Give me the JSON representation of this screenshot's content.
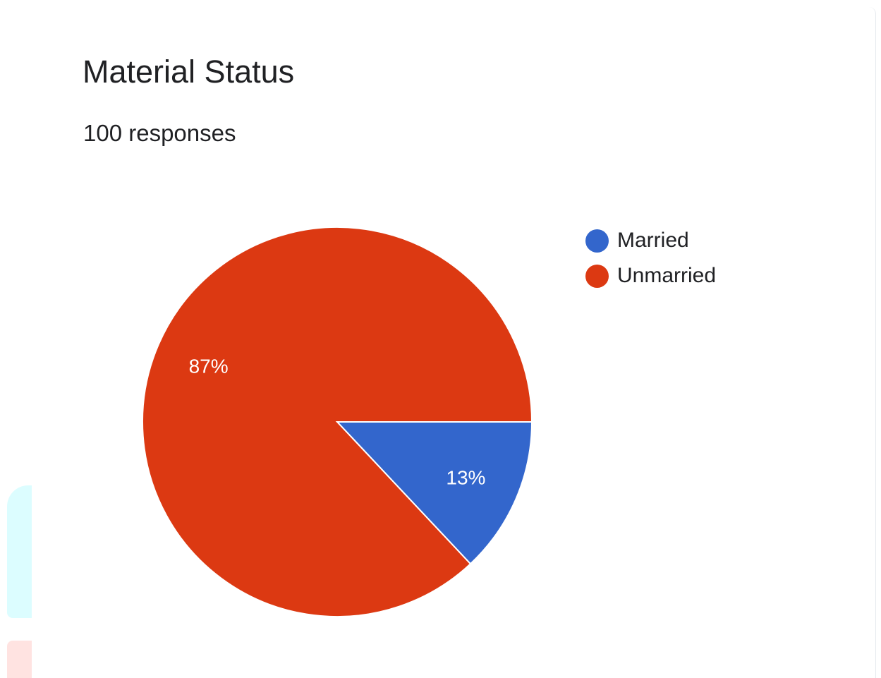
{
  "header": {
    "title": "Material Status",
    "responses": "100 responses"
  },
  "colors": {
    "married": "#3366cc",
    "unmarried": "#dc3912"
  },
  "chart_data": {
    "type": "pie",
    "title": "Material Status",
    "subtitle": "100 responses",
    "slices": [
      {
        "label": "Married",
        "value": 13,
        "display": "13%",
        "color": "#3366cc"
      },
      {
        "label": "Unmarried",
        "value": 87,
        "display": "87%",
        "color": "#dc3912"
      }
    ],
    "legend_position": "right"
  }
}
